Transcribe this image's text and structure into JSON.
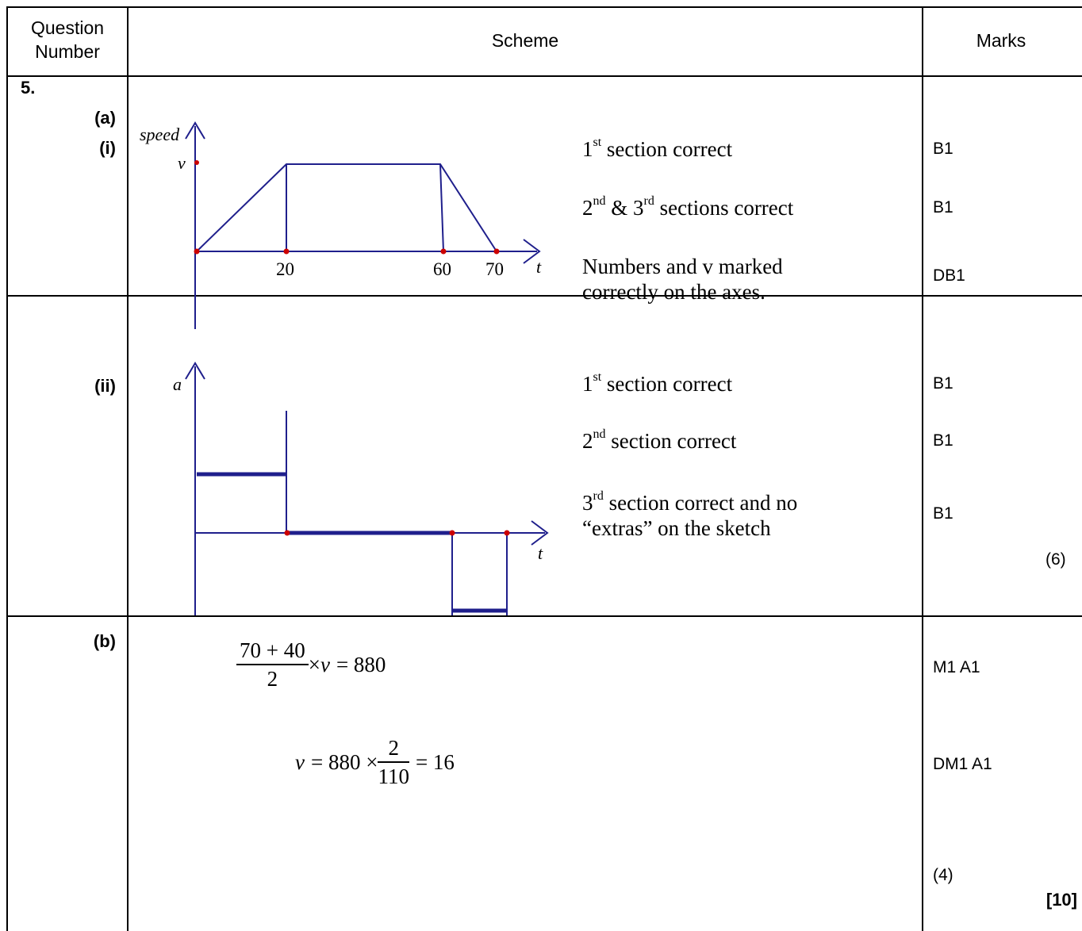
{
  "header": {
    "question_number": "Question Number",
    "scheme": "Scheme",
    "marks": "Marks"
  },
  "question": {
    "number": "5.",
    "part_a_label": "(a)",
    "part_a_i_label": "(i)",
    "part_a_ii_label": "(ii)",
    "part_b_label": "(b)"
  },
  "graph_speed": {
    "y_label": "speed",
    "v_label": "v",
    "x_label": "t",
    "ticks": [
      "20",
      "60",
      "70"
    ]
  },
  "graph_accel": {
    "y_label": "a",
    "x_label": "t"
  },
  "part_a_i": {
    "crit1_num": "1",
    "crit1_sup": "st",
    "crit1_text": " section correct",
    "crit2_num1": "2",
    "crit2_sup1": "nd",
    "crit2_mid": " & 3",
    "crit2_sup2": "rd",
    "crit2_text": " sections correct",
    "crit3_line1": "Numbers and v marked",
    "crit3_line2": "correctly on the axes.",
    "mark1": "B1",
    "mark2": "B1",
    "mark3": "DB1"
  },
  "part_a_ii": {
    "crit1_num": "1",
    "crit1_sup": "st",
    "crit1_text": " section correct",
    "crit2_num": "2",
    "crit2_sup": "nd",
    "crit2_text": " section correct",
    "crit3_num": "3",
    "crit3_sup": "rd",
    "crit3_text": " section correct and no",
    "crit3_line2": "“extras” on the sketch",
    "mark1": "B1",
    "mark2": "B1",
    "mark3": "B1",
    "subtotal": "(6)"
  },
  "part_b": {
    "eq1_num": "70 + 40",
    "eq1_den": "2",
    "eq1_times": "×",
    "eq1_v": "v",
    "eq1_rest": "= 880",
    "eq2_v": "v",
    "eq2_lhs": "= 880 ×",
    "eq2_num": "2",
    "eq2_den": "110",
    "eq2_rest": "= 16",
    "mark1": "M1 A1",
    "mark2": "DM1 A1",
    "subtotal": "(4)",
    "total": "[10]"
  }
}
